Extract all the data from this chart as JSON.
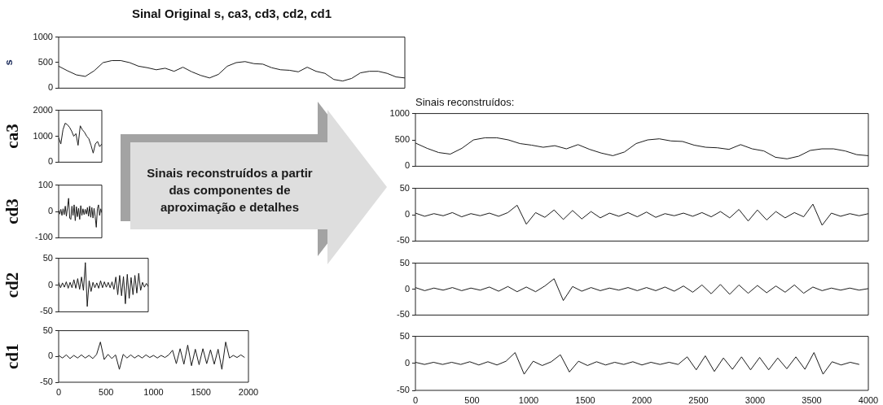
{
  "chart_data": [
    {
      "type": "line",
      "title": "Sinal Original s, ca3, cd3, cd2, cd1",
      "ylabel": "s",
      "color": "#1a1a1a",
      "ylim": [
        0,
        1000
      ],
      "yticks": [
        0,
        500,
        1000
      ],
      "tick_labels": "y",
      "categories": [
        null,
        null,
        null,
        null,
        null,
        null,
        null,
        null,
        null,
        null,
        null,
        null,
        null,
        null,
        null,
        null,
        null,
        null,
        null,
        null,
        null,
        null,
        null,
        null,
        null,
        null,
        null,
        null,
        null,
        null,
        null,
        null,
        null,
        null,
        null,
        null,
        null,
        null,
        null,
        null
      ],
      "values": [
        430,
        340,
        260,
        230,
        340,
        500,
        540,
        540,
        500,
        430,
        400,
        360,
        390,
        330,
        410,
        320,
        250,
        200,
        270,
        430,
        500,
        520,
        480,
        470,
        400,
        360,
        350,
        320,
        410,
        330,
        290,
        170,
        140,
        190,
        300,
        330,
        330,
        290,
        220,
        200
      ]
    },
    {
      "type": "line",
      "ylabel": "ca3",
      "color": "#1a1a1a",
      "ylim": [
        0,
        2000
      ],
      "yticks": [
        0,
        1000,
        2000
      ],
      "tick_labels": "y",
      "categories": [
        null,
        null,
        null,
        null,
        null,
        null,
        null,
        null,
        null,
        null,
        null,
        null,
        null,
        null,
        null,
        null,
        null,
        null,
        null,
        null,
        null
      ],
      "values": [
        950,
        700,
        1250,
        1500,
        1450,
        1350,
        1200,
        1000,
        1100,
        650,
        1400,
        1250,
        1150,
        1000,
        900,
        650,
        350,
        700,
        800,
        600,
        700
      ]
    },
    {
      "type": "line",
      "ylabel": "cd3",
      "color": "#1a1a1a",
      "ylim": [
        -100,
        100
      ],
      "yticks": [
        -100,
        0,
        100
      ],
      "tick_labels": "y",
      "categories": [
        null,
        null,
        null,
        null,
        null,
        null,
        null,
        null,
        null,
        null,
        null,
        null,
        null,
        null,
        null,
        null,
        null,
        null,
        null,
        null,
        null,
        null,
        null,
        null,
        null,
        null,
        null,
        null,
        null,
        null,
        null,
        null,
        null,
        null,
        null,
        null,
        null,
        null,
        null,
        null
      ],
      "values": [
        5,
        -10,
        8,
        -15,
        10,
        -12,
        20,
        -18,
        15,
        50,
        -25,
        -30,
        20,
        -15,
        25,
        -35,
        18,
        -20,
        12,
        -30,
        22,
        -15,
        10,
        -12,
        8,
        -10,
        15,
        -18,
        20,
        -22,
        15,
        -25,
        12,
        -20,
        -60,
        10,
        25,
        -15,
        10,
        -5
      ]
    },
    {
      "type": "line",
      "ylabel": "cd2",
      "color": "#1a1a1a",
      "ylim": [
        -50,
        50
      ],
      "yticks": [
        -50,
        0,
        50
      ],
      "tick_labels": "y",
      "categories": [
        null,
        null,
        null,
        null,
        null,
        null,
        null,
        null,
        null,
        null,
        null,
        null,
        null,
        null,
        null,
        null,
        null,
        null,
        null,
        null,
        null,
        null,
        null,
        null,
        null,
        null,
        null,
        null,
        null,
        null,
        null,
        null,
        null,
        null,
        null,
        null,
        null,
        null,
        null,
        null,
        null,
        null,
        null,
        null,
        null,
        null,
        null,
        null
      ],
      "values": [
        5,
        -5,
        4,
        -4,
        6,
        -6,
        5,
        -5,
        10,
        -6,
        12,
        -8,
        15,
        -10,
        42,
        -40,
        8,
        -12,
        5,
        -5,
        4,
        -6,
        8,
        -5,
        6,
        -4,
        5,
        -5,
        6,
        -8,
        15,
        -18,
        18,
        -20,
        16,
        -35,
        20,
        -25,
        14,
        -18,
        18,
        -15,
        22,
        -10,
        5,
        -4,
        3,
        -3
      ]
    },
    {
      "type": "line",
      "ylabel": "cd1",
      "color": "#1a1a1a",
      "xlim": [
        0,
        2000
      ],
      "ylim": [
        -50,
        50
      ],
      "yticks": [
        -50,
        0,
        50
      ],
      "xticks": [
        0,
        500,
        1000,
        1500,
        2000
      ],
      "x": [
        0,
        40,
        80,
        120,
        160,
        200,
        240,
        280,
        320,
        360,
        400,
        440,
        480,
        520,
        560,
        600,
        640,
        680,
        720,
        760,
        800,
        840,
        880,
        920,
        960,
        1000,
        1040,
        1080,
        1120,
        1160,
        1200,
        1240,
        1280,
        1320,
        1360,
        1400,
        1440,
        1480,
        1520,
        1560,
        1600,
        1640,
        1680,
        1720,
        1760,
        1800,
        1840,
        1880,
        1920,
        1960
      ],
      "values": [
        2,
        -3,
        3,
        -4,
        2,
        -3,
        3,
        -3,
        2,
        -4,
        4,
        28,
        -6,
        4,
        -4,
        3,
        -25,
        4,
        -3,
        3,
        -3,
        2,
        -3,
        3,
        -2,
        2,
        -3,
        2,
        -2,
        3,
        12,
        -14,
        15,
        -15,
        22,
        -18,
        14,
        -16,
        15,
        -14,
        13,
        -15,
        14,
        -25,
        28,
        -3,
        2,
        -2,
        3,
        -2
      ]
    },
    {
      "type": "other",
      "annotations": [
        "Sinais reconstruídos a partir das componentes de aproximação e detalhes"
      ]
    },
    {
      "type": "line",
      "title": "Sinais reconstruídos:",
      "color": "#1a1a1a",
      "ylim": [
        0,
        1000
      ],
      "yticks": [
        0,
        500,
        1000
      ],
      "tick_labels": "y",
      "categories": [
        null,
        null,
        null,
        null,
        null,
        null,
        null,
        null,
        null,
        null,
        null,
        null,
        null,
        null,
        null,
        null,
        null,
        null,
        null,
        null,
        null,
        null,
        null,
        null,
        null,
        null,
        null,
        null,
        null,
        null,
        null,
        null,
        null,
        null,
        null,
        null,
        null,
        null,
        null,
        null
      ],
      "values": [
        440,
        340,
        260,
        230,
        340,
        500,
        540,
        540,
        500,
        430,
        400,
        360,
        390,
        330,
        410,
        320,
        250,
        200,
        270,
        430,
        500,
        520,
        480,
        470,
        400,
        360,
        350,
        320,
        410,
        330,
        290,
        170,
        140,
        190,
        300,
        330,
        330,
        290,
        220,
        200
      ]
    },
    {
      "type": "line",
      "color": "#1a1a1a",
      "ylim": [
        -50,
        50
      ],
      "yticks": [
        -50,
        0,
        50
      ],
      "tick_labels": "y",
      "categories": [
        null,
        null,
        null,
        null,
        null,
        null,
        null,
        null,
        null,
        null,
        null,
        null,
        null,
        null,
        null,
        null,
        null,
        null,
        null,
        null,
        null,
        null,
        null,
        null,
        null,
        null,
        null,
        null,
        null,
        null,
        null,
        null,
        null,
        null,
        null,
        null,
        null,
        null,
        null,
        null,
        null,
        null,
        null,
        null,
        null,
        null,
        null,
        null,
        null,
        null
      ],
      "values": [
        3,
        -3,
        2,
        -2,
        4,
        -4,
        2,
        -2,
        3,
        -3,
        4,
        18,
        -18,
        4,
        -5,
        9,
        -9,
        8,
        -8,
        6,
        -6,
        3,
        -3,
        4,
        -4,
        5,
        -5,
        2,
        -2,
        3,
        -3,
        4,
        -4,
        6,
        -6,
        10,
        -12,
        9,
        -10,
        6,
        -6,
        4,
        -4,
        20,
        -20,
        3,
        -3,
        2,
        -2,
        2
      ]
    },
    {
      "type": "line",
      "color": "#1a1a1a",
      "ylim": [
        -50,
        50
      ],
      "yticks": [
        -50,
        0,
        50
      ],
      "tick_labels": "y",
      "categories": [
        null,
        null,
        null,
        null,
        null,
        null,
        null,
        null,
        null,
        null,
        null,
        null,
        null,
        null,
        null,
        null,
        null,
        null,
        null,
        null,
        null,
        null,
        null,
        null,
        null,
        null,
        null,
        null,
        null,
        null,
        null,
        null,
        null,
        null,
        null,
        null,
        null,
        null,
        null,
        null,
        null,
        null,
        null,
        null,
        null,
        null,
        null,
        null,
        null,
        null
      ],
      "values": [
        3,
        -3,
        2,
        -2,
        3,
        -3,
        2,
        -2,
        4,
        -4,
        5,
        -5,
        4,
        -5,
        6,
        20,
        -22,
        5,
        -4,
        3,
        -3,
        2,
        -2,
        3,
        -3,
        3,
        -3,
        4,
        -4,
        6,
        -6,
        8,
        -9,
        9,
        -10,
        8,
        -8,
        7,
        -7,
        6,
        -6,
        8,
        -8,
        4,
        -3,
        2,
        -2,
        2,
        -2,
        1
      ]
    },
    {
      "type": "line",
      "color": "#1a1a1a",
      "xlim": [
        0,
        4000
      ],
      "ylim": [
        -50,
        50
      ],
      "yticks": [
        -50,
        0,
        50
      ],
      "xticks": [
        0,
        500,
        1000,
        1500,
        2000,
        2500,
        3000,
        3500,
        4000
      ],
      "x": [
        0,
        80,
        160,
        240,
        320,
        400,
        480,
        560,
        640,
        720,
        800,
        880,
        960,
        1040,
        1120,
        1200,
        1280,
        1360,
        1440,
        1520,
        1600,
        1680,
        1760,
        1840,
        1920,
        2000,
        2080,
        2160,
        2240,
        2320,
        2400,
        2480,
        2560,
        2640,
        2720,
        2800,
        2880,
        2960,
        3040,
        3120,
        3200,
        3280,
        3360,
        3440,
        3520,
        3600,
        3680,
        3760,
        3840,
        3920
      ],
      "values": [
        2,
        -2,
        2,
        -2,
        2,
        -2,
        3,
        -3,
        3,
        -3,
        4,
        20,
        -20,
        4,
        -4,
        3,
        16,
        -16,
        4,
        -4,
        3,
        -3,
        2,
        -2,
        3,
        -3,
        2,
        -2,
        2,
        -2,
        12,
        -12,
        14,
        -15,
        10,
        -11,
        12,
        -12,
        11,
        -12,
        10,
        -10,
        12,
        -11,
        20,
        -20,
        3,
        -3,
        2,
        -2
      ]
    }
  ]
}
